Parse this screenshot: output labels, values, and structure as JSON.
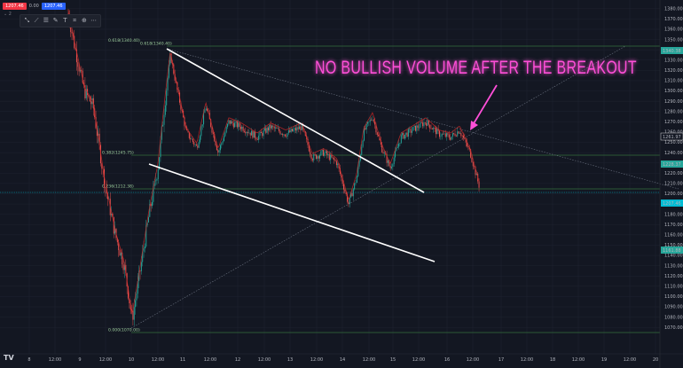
{
  "header": {
    "sell_price": "1207.46",
    "spread": "0.00",
    "buy_price": "1207.46",
    "sub": "2"
  },
  "toolbar": {
    "items": [
      "cursor-icon",
      "trendline-icon",
      "fib-icon",
      "brush-icon",
      "text-icon",
      "ruler-icon",
      "zoom-icon",
      "magnet-icon"
    ]
  },
  "annotation": {
    "text": "NO BULLISH VOLUME AFTER THE BREAKOUT",
    "color": "#ff4fd8"
  },
  "price_axis": {
    "ticks": [
      "1380.00",
      "1370.00",
      "1360.00",
      "1350.00",
      "1340.00",
      "1330.00",
      "1320.00",
      "1310.00",
      "1300.00",
      "1290.00",
      "1280.00",
      "1270.00",
      "1260.00",
      "1250.00",
      "1240.00",
      "1230.00",
      "1220.00",
      "1210.00",
      "1200.00",
      "1190.00",
      "1180.00",
      "1170.00",
      "1160.00",
      "1150.00",
      "1140.00",
      "1130.00",
      "1120.00",
      "1110.00",
      "1100.00",
      "1090.00",
      "1080.00",
      "1070.00"
    ],
    "labels": [
      {
        "text": "1340.38",
        "color": "#26a69a"
      },
      {
        "text": "1261.97",
        "color": "#ffffff"
      },
      {
        "text": "1228.37",
        "color": "#26a69a"
      },
      {
        "text": "1207.46",
        "color": "#00bcd4"
      },
      {
        "text": "1161.88",
        "color": "#26a69a"
      }
    ]
  },
  "time_axis": {
    "ticks": [
      "8",
      "12:00",
      "9",
      "12:00",
      "10",
      "12:00",
      "11",
      "12:00",
      "12",
      "12:00",
      "13",
      "12:00",
      "14",
      "12:00",
      "15",
      "12:00",
      "16",
      "12:00",
      "17",
      "12:00",
      "18",
      "12:00",
      "19",
      "12:00",
      "20"
    ]
  },
  "fib": {
    "levels": [
      {
        "label": "0.618(1340.40)",
        "price": 1340.4
      },
      {
        "label": "0.382(1245.75)",
        "price": 1245.75
      },
      {
        "label": "0.236(1212.38)",
        "price": 1212.38
      },
      {
        "label": "0.000(1070.00)",
        "price": 1070.0
      }
    ],
    "left_top_label": "0.618(1340.40)"
  },
  "colors": {
    "background": "#131722",
    "up": "#26a69a",
    "down": "#ef5350",
    "annotation": "#ff4fd8"
  },
  "chart_data": {
    "type": "line",
    "title": "",
    "xlabel": "",
    "ylabel": "",
    "ylim": [
      1065,
      1385
    ],
    "x": [
      "8",
      "9",
      "10",
      "11",
      "12",
      "13",
      "14",
      "15",
      "16",
      "17"
    ],
    "series": [
      {
        "values": [
          1370,
          1290,
          1080,
          1335,
          1265,
          1255,
          1190,
          1255,
          1265,
          1205
        ]
      }
    ]
  }
}
